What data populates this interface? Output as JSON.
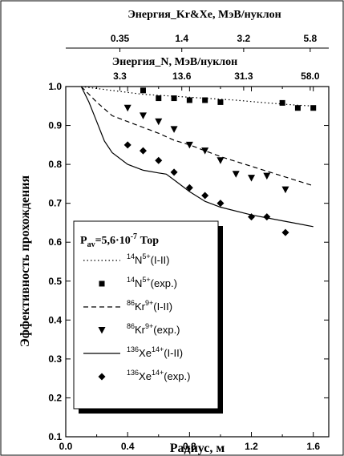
{
  "chart_data": {
    "type": "scatter",
    "xlabel": "Радиус, м",
    "ylabel": "Эффективность прохождения",
    "xlim": [
      0.0,
      1.7
    ],
    "ylim": [
      0.1,
      1.0
    ],
    "x_ticks": [
      "0.0",
      "0.4",
      "0.8",
      "1.2",
      "1.6"
    ],
    "y_ticks": [
      "0.1",
      "0.2",
      "0.3",
      "0.4",
      "0.5",
      "0.6",
      "0.7",
      "0.8",
      "0.9",
      "1.0"
    ],
    "top_axis_1": {
      "label": "Энергия_Kr&Xe, МэВ/нуклон",
      "ticks": [
        {
          "x": 0.35,
          "label": "0.35"
        },
        {
          "x": 0.75,
          "label": "1.4"
        },
        {
          "x": 1.15,
          "label": "3.2"
        },
        {
          "x": 1.58,
          "label": "5.8"
        }
      ]
    },
    "top_axis_2": {
      "label": "Энергия_N, МэВ/нуклон",
      "ticks": [
        {
          "x": 0.35,
          "label": "3.3"
        },
        {
          "x": 0.75,
          "label": "13.6"
        },
        {
          "x": 1.15,
          "label": "31.3"
        },
        {
          "x": 1.58,
          "label": "58.0"
        }
      ]
    },
    "legend": {
      "title_main": "P",
      "title_sub": "av",
      "title_rest": "=5,6·10",
      "title_exp": "-7",
      "title_unit": " Тор",
      "position": "left-lower"
    },
    "series": [
      {
        "sup": "14",
        "ion": "N",
        "charge": "5+",
        "suffix": "(I-II)",
        "kind": "line",
        "style": "dotted",
        "x": [
          0.1,
          0.3,
          0.5,
          0.7,
          0.9,
          1.1,
          1.3,
          1.5,
          1.6
        ],
        "y": [
          1.0,
          0.99,
          0.98,
          0.975,
          0.97,
          0.965,
          0.958,
          0.952,
          0.95
        ]
      },
      {
        "sup": "14",
        "ion": "N",
        "charge": "5+",
        "suffix": "(exp.)",
        "kind": "points",
        "marker": "square",
        "x": [
          0.5,
          0.6,
          0.7,
          0.8,
          0.9,
          1.0,
          1.4,
          1.5,
          1.6
        ],
        "y": [
          0.99,
          0.97,
          0.97,
          0.965,
          0.965,
          0.96,
          0.958,
          0.945,
          0.945
        ]
      },
      {
        "sup": "86",
        "ion": "Kr",
        "charge": "9+",
        "suffix": "(I-II)",
        "kind": "line",
        "style": "dashed",
        "x": [
          0.1,
          0.2,
          0.3,
          0.4,
          0.5,
          0.6,
          0.7,
          0.8,
          1.0,
          1.2,
          1.4,
          1.6
        ],
        "y": [
          1.0,
          0.96,
          0.925,
          0.91,
          0.895,
          0.88,
          0.862,
          0.85,
          0.82,
          0.795,
          0.77,
          0.745
        ]
      },
      {
        "sup": "86",
        "ion": "Kr",
        "charge": "9+",
        "suffix": "(exp.)",
        "kind": "points",
        "marker": "triangle-down",
        "x": [
          0.4,
          0.5,
          0.6,
          0.7,
          0.8,
          0.9,
          1.0,
          1.1,
          1.2,
          1.3,
          1.42
        ],
        "y": [
          0.945,
          0.925,
          0.91,
          0.89,
          0.85,
          0.835,
          0.81,
          0.775,
          0.765,
          0.77,
          0.735
        ]
      },
      {
        "sup": "136",
        "ion": "Xe",
        "charge": "14+",
        "suffix": "(I-II)",
        "kind": "line",
        "style": "solid",
        "x": [
          0.1,
          0.15,
          0.2,
          0.25,
          0.3,
          0.4,
          0.5,
          0.6,
          0.65,
          0.7,
          0.8,
          0.9,
          1.0,
          1.2,
          1.4,
          1.6
        ],
        "y": [
          1.0,
          0.96,
          0.91,
          0.86,
          0.83,
          0.8,
          0.785,
          0.778,
          0.775,
          0.76,
          0.73,
          0.705,
          0.69,
          0.67,
          0.655,
          0.64
        ]
      },
      {
        "sup": "136",
        "ion": "Xe",
        "charge": "14+",
        "suffix": "(exp.)",
        "kind": "points",
        "marker": "diamond",
        "x": [
          0.4,
          0.5,
          0.6,
          0.7,
          0.8,
          0.9,
          1.0,
          1.2,
          1.3,
          1.42
        ],
        "y": [
          0.85,
          0.835,
          0.81,
          0.78,
          0.74,
          0.72,
          0.7,
          0.665,
          0.665,
          0.625
        ]
      }
    ]
  }
}
